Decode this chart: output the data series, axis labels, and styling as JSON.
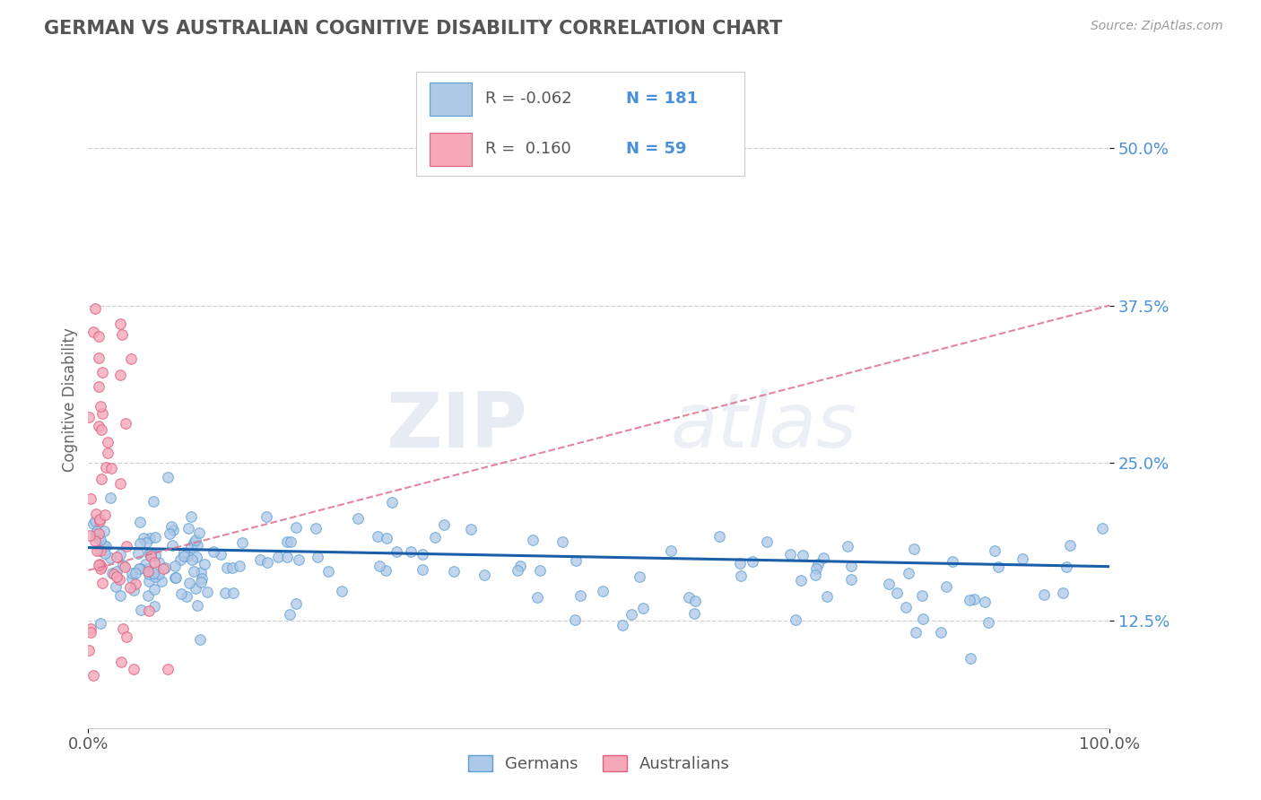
{
  "title": "GERMAN VS AUSTRALIAN COGNITIVE DISABILITY CORRELATION CHART",
  "source_text": "Source: ZipAtlas.com",
  "ylabel": "Cognitive Disability",
  "x_min": 0.0,
  "x_max": 1.0,
  "y_min": 0.04,
  "y_max": 0.56,
  "x_ticks": [
    0.0,
    1.0
  ],
  "x_tick_labels": [
    "0.0%",
    "100.0%"
  ],
  "y_ticks": [
    0.125,
    0.25,
    0.375,
    0.5
  ],
  "y_tick_labels": [
    "12.5%",
    "25.0%",
    "37.5%",
    "50.0%"
  ],
  "german_color": "#aec8e8",
  "german_edge": "#5a9fd4",
  "australian_color": "#f4a8b8",
  "australian_edge": "#e06080",
  "trend_german_color": "#1a5fa8",
  "trend_australian_color": "#e07090",
  "R_german": -0.062,
  "N_german": 181,
  "R_australian": 0.16,
  "N_australian": 59,
  "legend_label_german": "Germans",
  "legend_label_australian": "Australians",
  "background_color": "#ffffff",
  "grid_color": "#cccccc",
  "title_color": "#555555",
  "axis_label_color": "#666666",
  "tick_color_blue": "#4a90d9",
  "tick_color_dark": "#555555",
  "legend_r_color": "#555555",
  "legend_n_color": "#4a90d9",
  "watermark_zip": "ZIP",
  "watermark_atlas": "atlas"
}
